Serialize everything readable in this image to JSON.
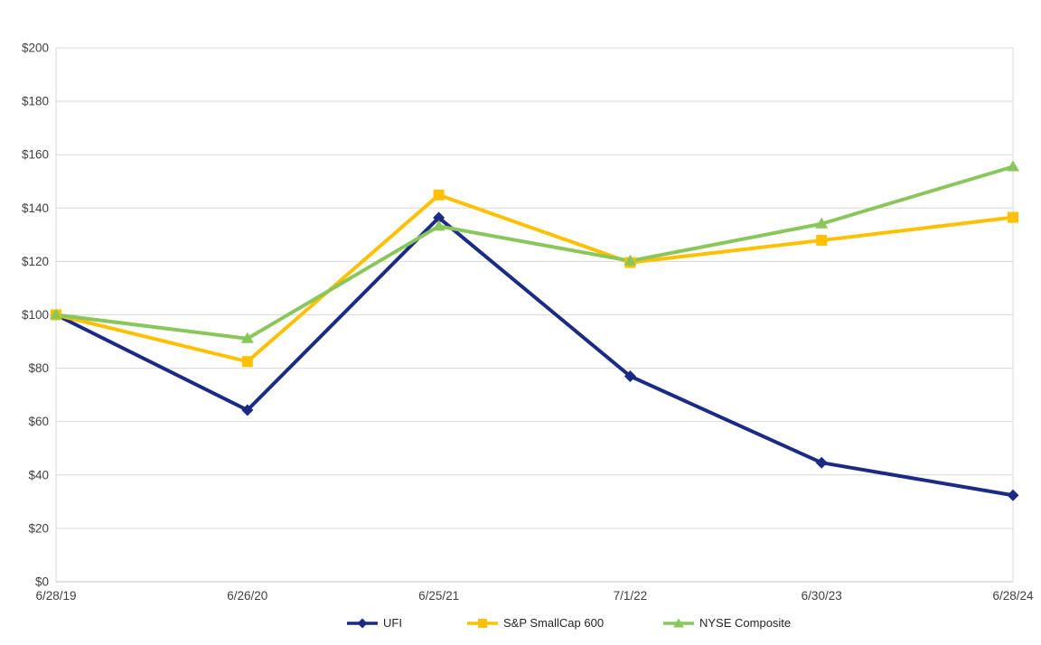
{
  "chart_data": {
    "type": "line",
    "categories": [
      "6/28/19",
      "6/26/20",
      "6/25/21",
      "7/1/22",
      "6/30/23",
      "6/28/24"
    ],
    "series": [
      {
        "name": "UFI",
        "color": "#1B2A85",
        "marker": "diamond",
        "values": [
          100,
          64.3,
          136.4,
          77.0,
          44.6,
          32.4
        ]
      },
      {
        "name": "S&P SmallCap 600",
        "color": "#FFC000",
        "marker": "square",
        "values": [
          100,
          82.5,
          144.9,
          119.6,
          127.9,
          136.5
        ]
      },
      {
        "name": "NYSE Composite",
        "color": "#8AC75A",
        "marker": "triangle",
        "values": [
          100,
          91.1,
          133.2,
          120.2,
          134.1,
          155.5
        ]
      }
    ],
    "y_axis": {
      "min": 0,
      "max": 200,
      "step": 20,
      "tick_prefix": "$",
      "tick_labels": [
        "$0",
        "$20",
        "$40",
        "$60",
        "$80",
        "$100",
        "$120",
        "$140",
        "$160",
        "$180",
        "$200"
      ]
    },
    "grid": true,
    "legend_position": "bottom",
    "colors": {
      "background": "#FFFFFF",
      "gridline": "#D9D9D9",
      "axis_line": "#BFBFBF",
      "tick_label": "#404040",
      "legend_text": "#262626"
    }
  }
}
